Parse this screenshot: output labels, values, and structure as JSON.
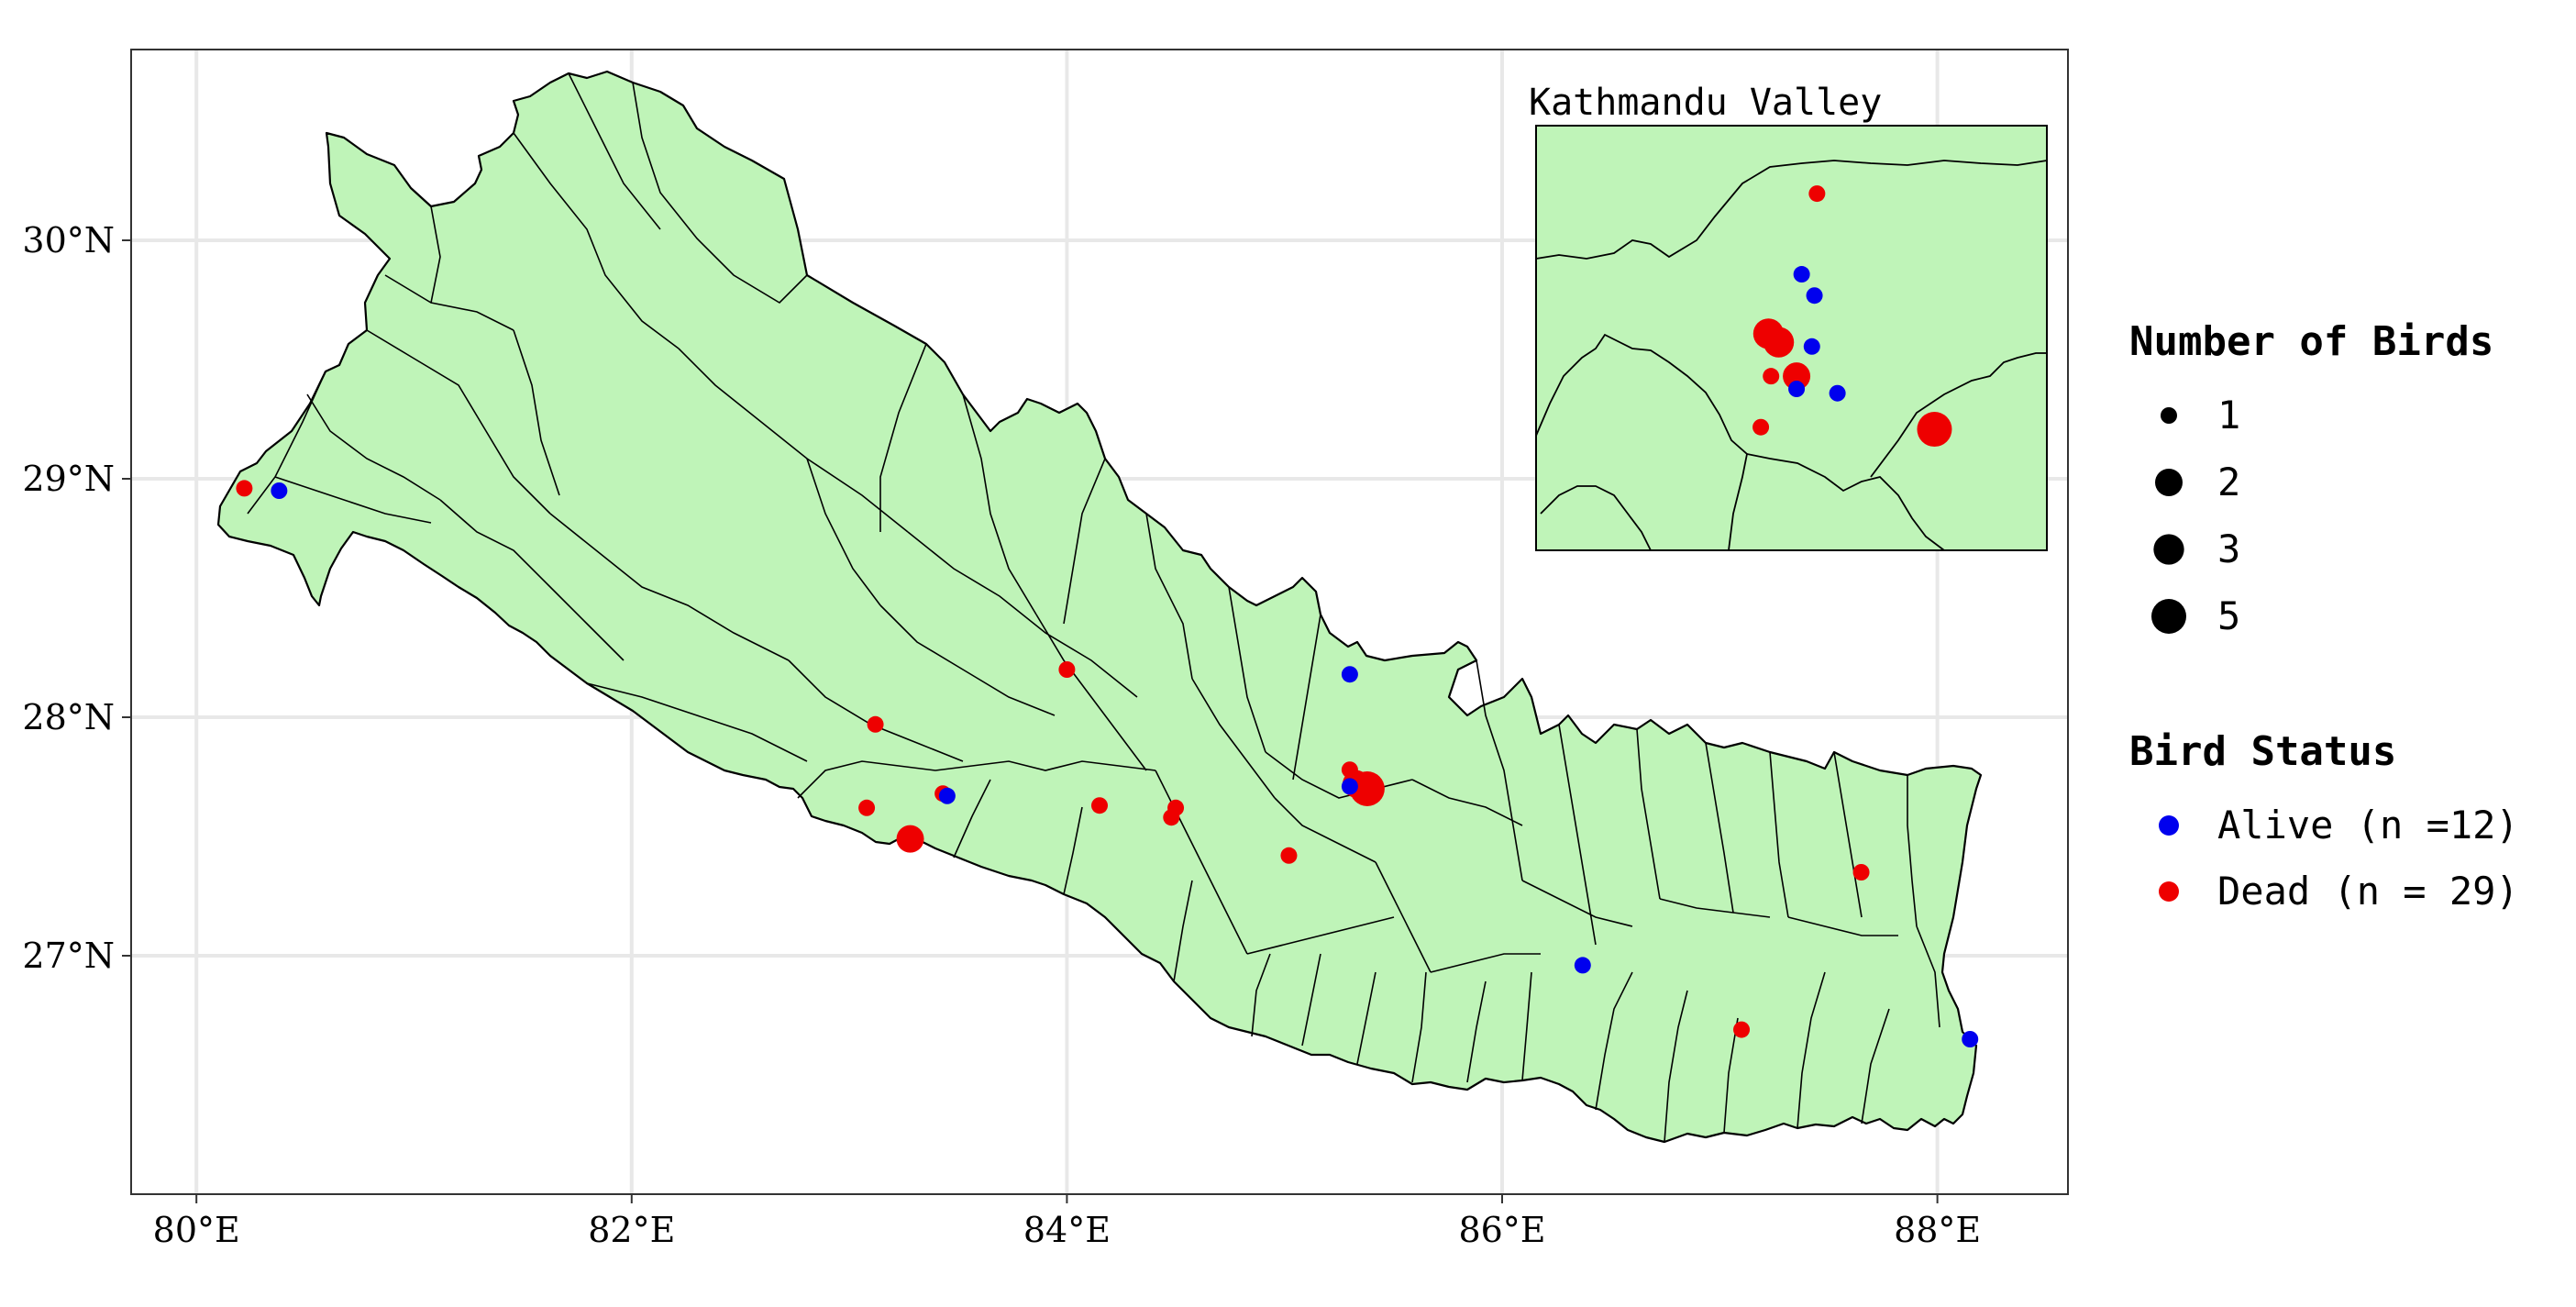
{
  "colors": {
    "land": "#bff4b8",
    "border": "#000000",
    "grid": "#e8e8e8",
    "alive": "#0000ee",
    "dead": "#ee0000",
    "inset_panel": "#bff4b8"
  },
  "inset": {
    "title": "Kathmandu Valley"
  },
  "legend": {
    "size_title": "Number of Birds",
    "size_items": [
      {
        "label": "1",
        "value": 1
      },
      {
        "label": "2",
        "value": 2
      },
      {
        "label": "3",
        "value": 3
      },
      {
        "label": "5",
        "value": 5
      }
    ],
    "status_title": "Bird Status",
    "status_items": [
      {
        "label": "Alive (n =12)",
        "status": "alive"
      },
      {
        "label": "Dead (n = 29)",
        "status": "dead"
      }
    ]
  },
  "axes": {
    "lon_range": [
      79.7,
      88.6
    ],
    "lat_range": [
      26.0,
      30.8
    ],
    "x_ticks": [
      {
        "value": 80,
        "label": "80°E"
      },
      {
        "value": 82,
        "label": "82°E"
      },
      {
        "value": 84,
        "label": "84°E"
      },
      {
        "value": 86,
        "label": "86°E"
      },
      {
        "value": 88,
        "label": "88°E"
      }
    ],
    "y_ticks": [
      {
        "value": 27,
        "label": "27°N"
      },
      {
        "value": 28,
        "label": "28°N"
      },
      {
        "value": 29,
        "label": "29°N"
      },
      {
        "value": 30,
        "label": "30°N"
      }
    ]
  },
  "points": [
    {
      "lon": 80.22,
      "lat": 28.96,
      "status": "dead",
      "count": 1
    },
    {
      "lon": 80.38,
      "lat": 28.95,
      "status": "alive",
      "count": 1
    },
    {
      "lon": 83.12,
      "lat": 27.97,
      "status": "dead",
      "count": 1
    },
    {
      "lon": 83.08,
      "lat": 27.62,
      "status": "dead",
      "count": 1
    },
    {
      "lon": 83.28,
      "lat": 27.49,
      "status": "dead",
      "count": 2
    },
    {
      "lon": 83.43,
      "lat": 27.68,
      "status": "dead",
      "count": 1
    },
    {
      "lon": 83.45,
      "lat": 27.67,
      "status": "alive",
      "count": 1
    },
    {
      "lon": 84.0,
      "lat": 28.2,
      "status": "dead",
      "count": 1
    },
    {
      "lon": 84.15,
      "lat": 27.63,
      "status": "dead",
      "count": 1
    },
    {
      "lon": 84.5,
      "lat": 27.62,
      "status": "dead",
      "count": 1
    },
    {
      "lon": 84.48,
      "lat": 27.58,
      "status": "dead",
      "count": 1
    },
    {
      "lon": 85.02,
      "lat": 27.42,
      "status": "dead",
      "count": 1
    },
    {
      "lon": 85.3,
      "lat": 28.18,
      "status": "alive",
      "count": 1
    },
    {
      "lon": 85.3,
      "lat": 27.78,
      "status": "dead",
      "count": 1
    },
    {
      "lon": 85.38,
      "lat": 27.7,
      "status": "dead",
      "count": 5
    },
    {
      "lon": 85.33,
      "lat": 27.72,
      "status": "dead",
      "count": 2
    },
    {
      "lon": 85.3,
      "lat": 27.71,
      "status": "alive",
      "count": 1
    },
    {
      "lon": 86.37,
      "lat": 26.96,
      "status": "alive",
      "count": 1
    },
    {
      "lon": 87.1,
      "lat": 26.69,
      "status": "dead",
      "count": 1
    },
    {
      "lon": 87.65,
      "lat": 27.35,
      "status": "dead",
      "count": 1
    },
    {
      "lon": 88.15,
      "lat": 26.65,
      "status": "alive",
      "count": 1
    }
  ],
  "inset_points": [
    {
      "u": 0.55,
      "v": 0.16,
      "status": "dead",
      "count": 1
    },
    {
      "u": 0.52,
      "v": 0.35,
      "status": "alive",
      "count": 1
    },
    {
      "u": 0.545,
      "v": 0.4,
      "status": "alive",
      "count": 1
    },
    {
      "u": 0.455,
      "v": 0.49,
      "status": "dead",
      "count": 3
    },
    {
      "u": 0.475,
      "v": 0.51,
      "status": "dead",
      "count": 3
    },
    {
      "u": 0.54,
      "v": 0.52,
      "status": "alive",
      "count": 1
    },
    {
      "u": 0.46,
      "v": 0.59,
      "status": "dead",
      "count": 1
    },
    {
      "u": 0.51,
      "v": 0.59,
      "status": "dead",
      "count": 2
    },
    {
      "u": 0.51,
      "v": 0.62,
      "status": "alive",
      "count": 1
    },
    {
      "u": 0.59,
      "v": 0.63,
      "status": "alive",
      "count": 1
    },
    {
      "u": 0.44,
      "v": 0.71,
      "status": "dead",
      "count": 1
    },
    {
      "u": 0.78,
      "v": 0.715,
      "status": "dead",
      "count": 5
    }
  ]
}
